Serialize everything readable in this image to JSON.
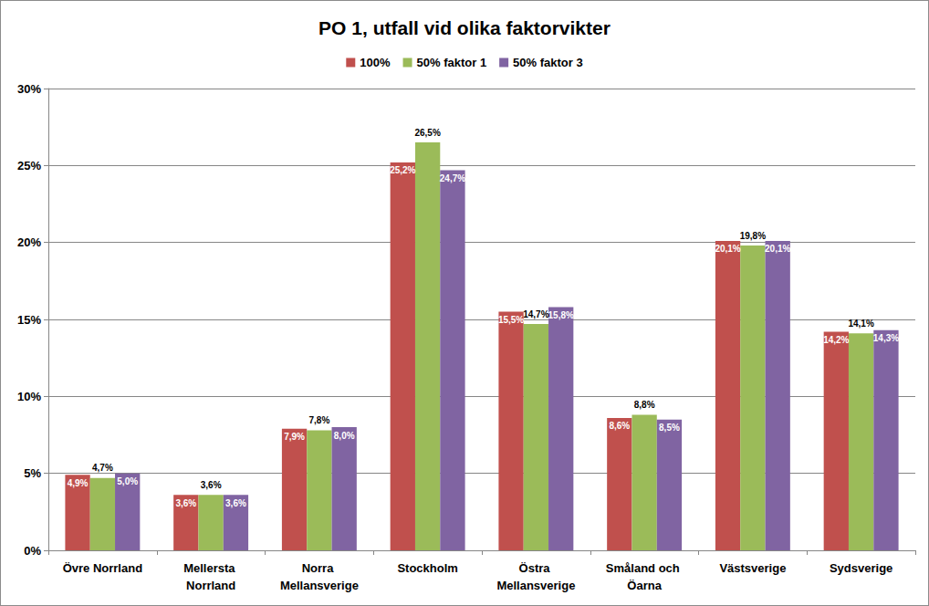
{
  "chart_data": {
    "type": "bar",
    "title": "PO 1, utfall vid olika faktorvikter",
    "categories": [
      "Övre Norrland",
      "Mellersta Norrland",
      "Norra Mellansverige",
      "Stockholm",
      "Östra Mellansverige",
      "Småland och Öarna",
      "Västsverige",
      "Sydsverige"
    ],
    "series": [
      {
        "name": "100%",
        "color": "#c0504d",
        "values": [
          4.9,
          3.6,
          7.9,
          25.2,
          15.5,
          8.6,
          20.1,
          14.2
        ],
        "value_labels": [
          "4,9%",
          "3,6%",
          "7,9%",
          "25,2%",
          "15,5%",
          "8,6%",
          "20,1%",
          "14,2%"
        ]
      },
      {
        "name": "50% faktor 1",
        "color": "#9bbb59",
        "values": [
          4.7,
          3.6,
          7.8,
          26.5,
          14.7,
          8.8,
          19.8,
          14.1
        ],
        "value_labels": [
          "4,7%",
          "3,6%",
          "7,8%",
          "26,5%",
          "14,7%",
          "8,8%",
          "19,8%",
          "14,1%"
        ]
      },
      {
        "name": "50% faktor 3",
        "color": "#8064a2",
        "values": [
          5.0,
          3.6,
          8.0,
          24.7,
          15.8,
          8.5,
          20.1,
          14.3
        ],
        "value_labels": [
          "5,0%",
          "3,6%",
          "8,0%",
          "24,7%",
          "15,8%",
          "8,5%",
          "20,1%",
          "14,3%"
        ]
      }
    ],
    "ylim": [
      0,
      30
    ],
    "yticks": [
      {
        "value": 0,
        "label": "0%"
      },
      {
        "value": 5,
        "label": "5%"
      },
      {
        "value": 10,
        "label": "10%"
      },
      {
        "value": 15,
        "label": "15%"
      },
      {
        "value": 20,
        "label": "20%"
      },
      {
        "value": 25,
        "label": "25%"
      },
      {
        "value": 30,
        "label": "30%"
      }
    ],
    "grid": true,
    "legend": "top",
    "data_labels": true
  }
}
